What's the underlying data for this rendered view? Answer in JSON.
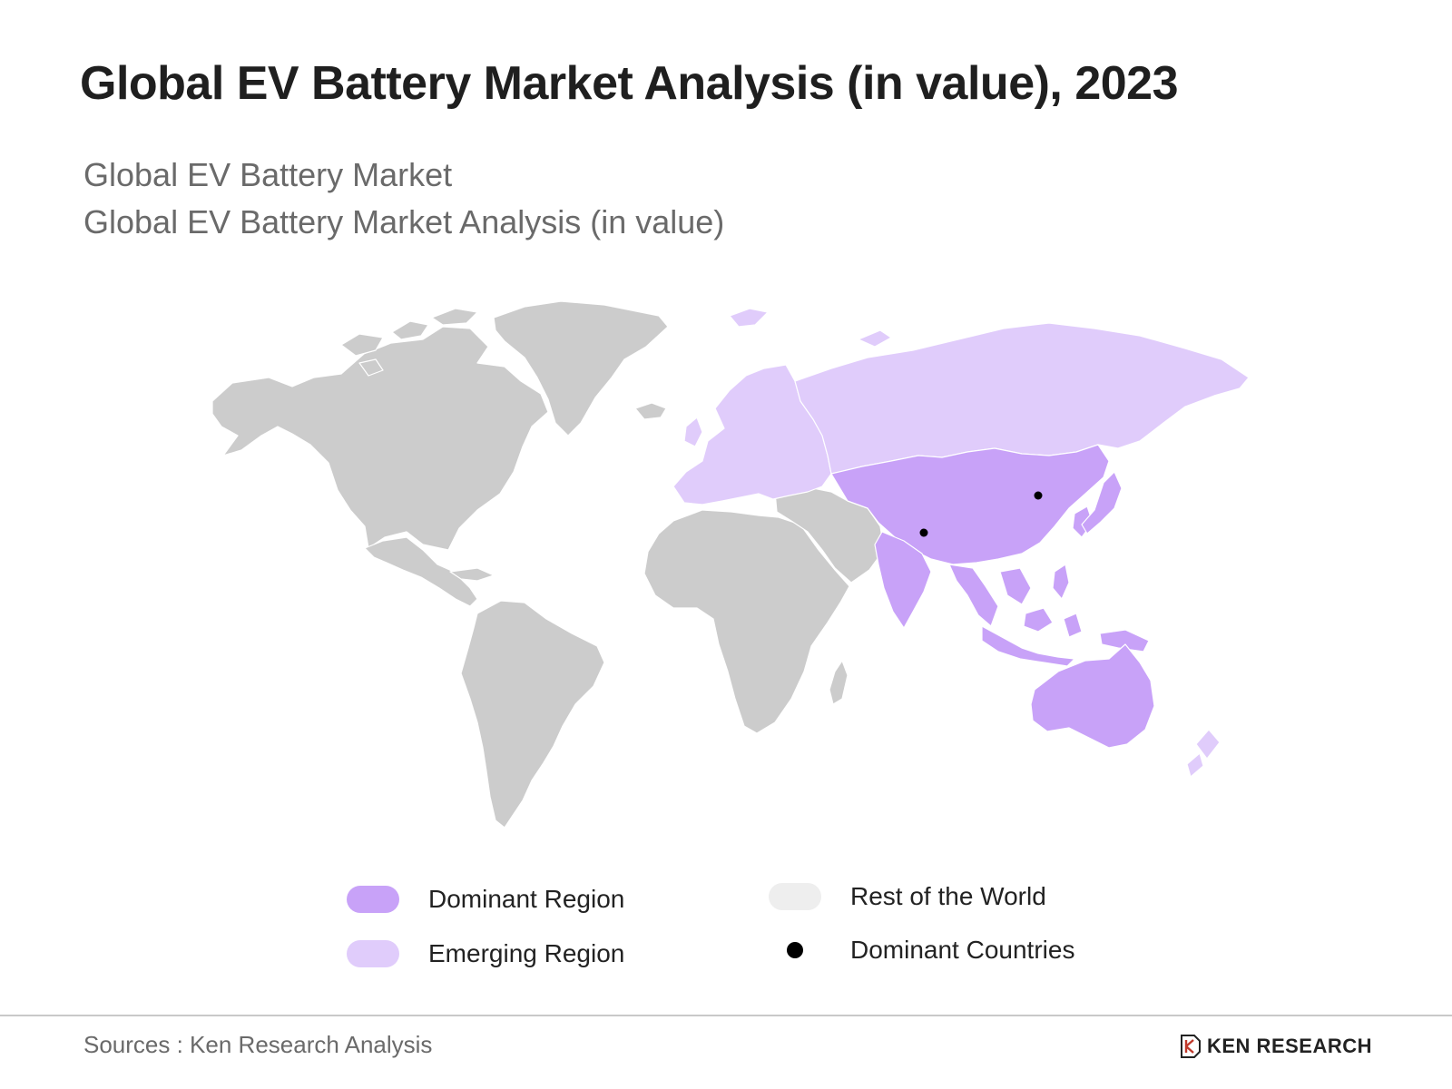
{
  "title": "Global EV Battery Market Analysis (in value), 2023",
  "subtitle_lines": [
    "Global EV Battery Market",
    "Global EV Battery Market Analysis (in value)"
  ],
  "colors": {
    "dominant_region": "#c8a2f8",
    "emerging_region": "#e0ccfb",
    "rest_of_world_map": "#cccccc",
    "rest_of_world_legend": "#eeeeee",
    "dominant_country_marker": "#000000",
    "border": "#ffffff"
  },
  "legend": [
    {
      "label": "Dominant Region",
      "type": "swatch",
      "color": "#c8a2f8"
    },
    {
      "label": "Rest of the World",
      "type": "swatch",
      "color": "#eeeeee"
    },
    {
      "label": "Emerging Region",
      "type": "swatch",
      "color": "#e0ccfb"
    },
    {
      "label": "Dominant Countries",
      "type": "dot",
      "color": "#000000"
    }
  ],
  "map": {
    "regions": {
      "dominant": [
        "China",
        "India",
        "South Korea",
        "Japan",
        "Southeast Asia",
        "Australia",
        "Central Asia"
      ],
      "emerging": [
        "Europe",
        "Russia",
        "New Zealand",
        "Svalbard"
      ],
      "rest_of_world": [
        "North America",
        "Greenland",
        "Central America",
        "South America",
        "Africa",
        "Middle East",
        "Madagascar"
      ]
    }
  },
  "footer": {
    "source": "Sources : Ken Research Analysis",
    "logo_text": "KEN RESEARCH",
    "logo_icon": "ken-research-logo-icon"
  }
}
